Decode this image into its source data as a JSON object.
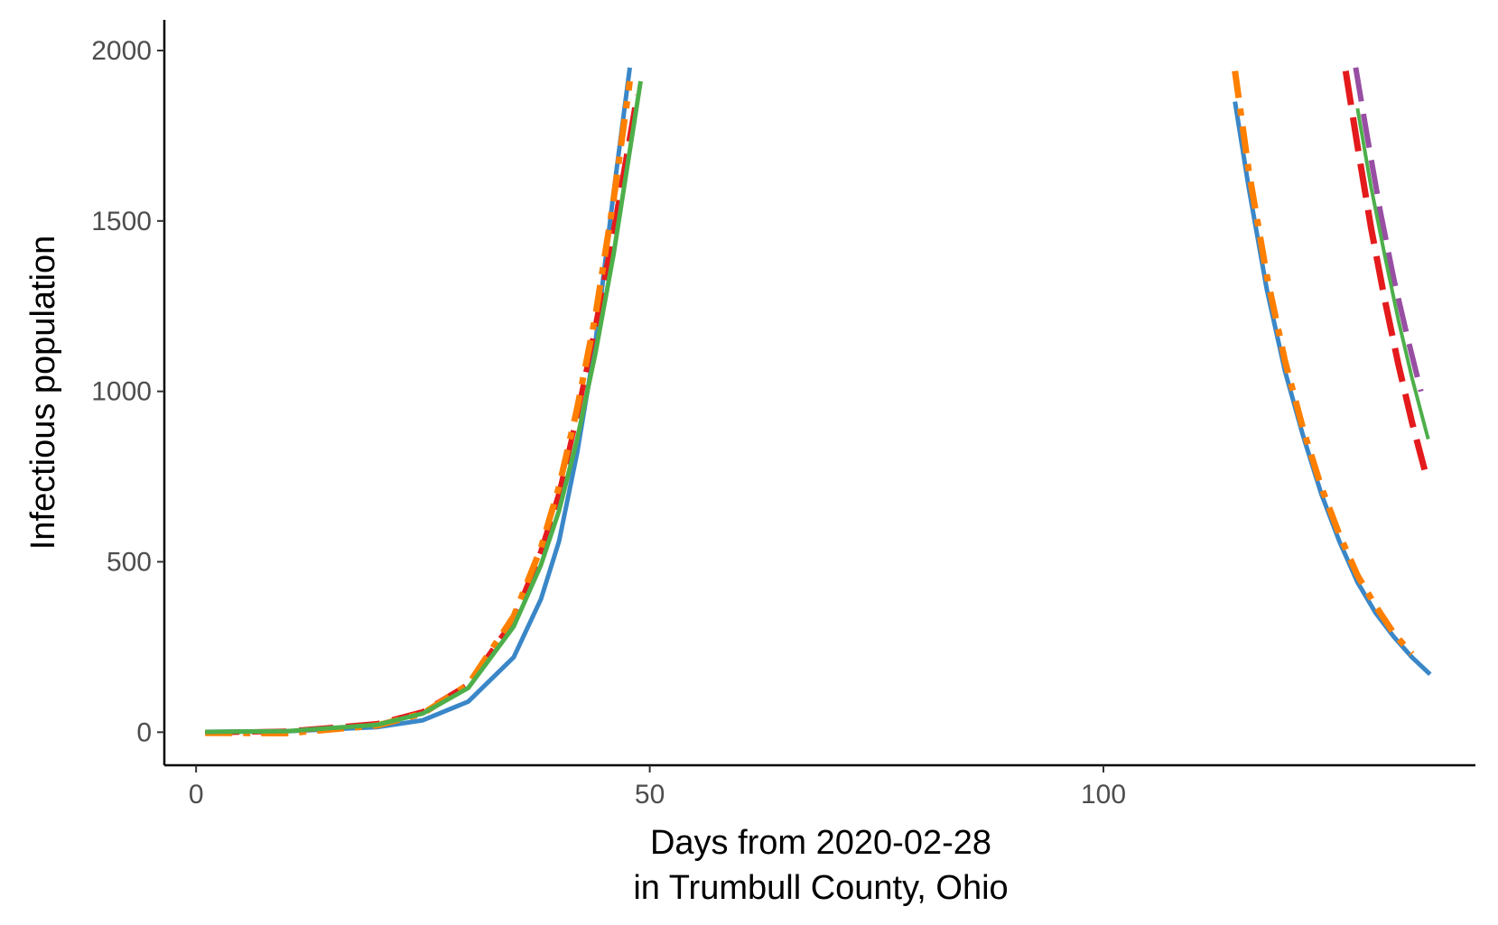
{
  "chart_data": {
    "type": "line",
    "title": "",
    "xlabel_lines": [
      "Days from 2020-02-28",
      "in Trumbull County, Ohio"
    ],
    "ylabel": "Infectious population",
    "xlim": [
      -3.5,
      141
    ],
    "ylim": [
      -97,
      2090
    ],
    "x_ticks": [
      0,
      50,
      100
    ],
    "y_ticks": [
      0,
      500,
      1000,
      1500,
      2000
    ],
    "grid": false,
    "legend": "none",
    "series": [
      {
        "color": "#3A87C8",
        "dash": "solid",
        "width": 5,
        "x": [
          1,
          10,
          20,
          25,
          30,
          35,
          38,
          40,
          42,
          44,
          46,
          47.8
        ],
        "y": [
          1,
          3,
          15,
          35,
          90,
          220,
          390,
          560,
          820,
          1140,
          1580,
          1950
        ]
      },
      {
        "color": "#E41A1C",
        "dash": "long",
        "width": 6,
        "x": [
          1,
          10,
          20,
          25,
          30,
          35,
          38,
          40,
          42,
          44,
          46,
          48.6
        ],
        "y": [
          -2,
          3,
          25,
          60,
          140,
          330,
          530,
          700,
          930,
          1190,
          1470,
          1870
        ]
      },
      {
        "color": "#FF7F00",
        "dash": "dashdot",
        "width": 7,
        "x": [
          1,
          10,
          20,
          25,
          30,
          35,
          38,
          40,
          42,
          44,
          46,
          47.8
        ],
        "y": [
          -2,
          -3,
          20,
          55,
          140,
          340,
          540,
          720,
          950,
          1220,
          1560,
          1910
        ]
      },
      {
        "color": "#4DAF4A",
        "dash": "solid",
        "width": 5,
        "x": [
          1,
          10,
          20,
          25,
          30,
          35,
          38,
          40,
          42,
          44,
          46,
          49
        ],
        "y": [
          1,
          3,
          22,
          55,
          130,
          310,
          490,
          650,
          860,
          1110,
          1400,
          1910
        ]
      },
      {
        "color": "#3A87C8",
        "dash": "solid",
        "width": 5,
        "x": [
          114.5,
          116,
          118,
          120,
          122,
          124,
          126,
          128,
          130,
          132,
          134,
          136
        ],
        "y": [
          1850,
          1600,
          1300,
          1060,
          870,
          700,
          560,
          440,
          350,
          280,
          220,
          170
        ]
      },
      {
        "color": "#FF7F00",
        "dash": "dashdot",
        "width": 7,
        "x": [
          114.5,
          116,
          118,
          120,
          122,
          124,
          126,
          128,
          130,
          132,
          134
        ],
        "y": [
          1940,
          1650,
          1340,
          1090,
          890,
          720,
          580,
          460,
          370,
          290,
          230
        ]
      },
      {
        "color": "#984EA3",
        "dash": "long",
        "width": 6,
        "x": [
          127.8,
          129,
          130.5,
          132,
          133.5,
          135
        ],
        "y": [
          1950,
          1760,
          1530,
          1330,
          1160,
          1000
        ]
      },
      {
        "color": "#E41A1C",
        "dash": "long",
        "width": 7,
        "x": [
          126.7,
          128,
          129.5,
          131,
          132.5,
          134,
          135.4
        ],
        "y": [
          1940,
          1720,
          1480,
          1270,
          1080,
          910,
          770
        ]
      },
      {
        "color": "#4DAF4A",
        "dash": "solid",
        "width": 4,
        "x": [
          128,
          129.5,
          131,
          132.5,
          134,
          135.8
        ],
        "y": [
          1830,
          1600,
          1400,
          1210,
          1040,
          860
        ]
      }
    ]
  }
}
